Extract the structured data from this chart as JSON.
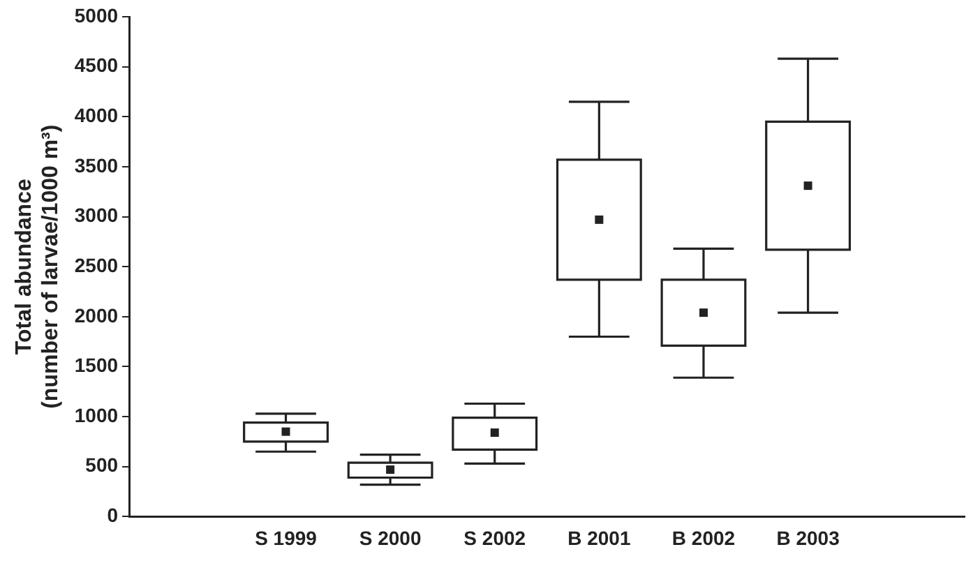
{
  "chart_data": {
    "type": "box",
    "ylabel": "Total abundance\n(number of larvae/1000 m³)",
    "categories": [
      "S 1999",
      "S 2000",
      "S 2002",
      "B 2001",
      "B 2002",
      "B 2003"
    ],
    "boxes": [
      {
        "low": 650,
        "q1": 750,
        "median": 850,
        "q3": 940,
        "high": 1030
      },
      {
        "low": 320,
        "q1": 390,
        "median": 470,
        "q3": 540,
        "high": 620
      },
      {
        "low": 530,
        "q1": 670,
        "median": 840,
        "q3": 990,
        "high": 1130
      },
      {
        "low": 1800,
        "q1": 2370,
        "median": 2970,
        "q3": 3570,
        "high": 4150
      },
      {
        "low": 1390,
        "q1": 1710,
        "median": 2040,
        "q3": 2370,
        "high": 2680
      },
      {
        "low": 2040,
        "q1": 2670,
        "median": 3310,
        "q3": 3950,
        "high": 4580
      }
    ],
    "color": "#222222",
    "ylim": [
      0,
      5000
    ],
    "yticks": [
      0,
      500,
      1000,
      1500,
      2000,
      2500,
      3000,
      3500,
      4000,
      4500,
      5000
    ],
    "grid": false,
    "legend": false
  }
}
